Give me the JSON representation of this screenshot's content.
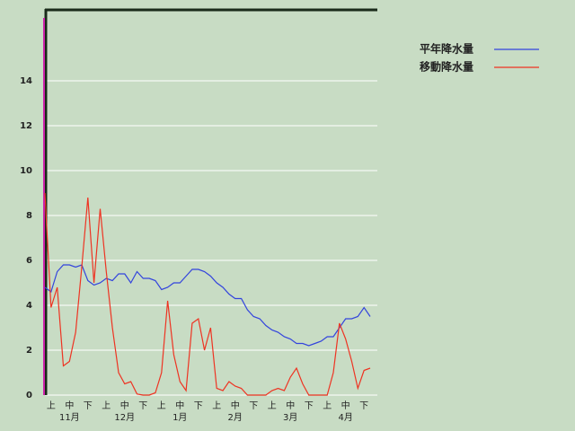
{
  "chart_data": {
    "type": "line",
    "categories": [
      null,
      "上",
      null,
      null,
      "中",
      null,
      null,
      "下",
      null,
      null,
      "上",
      null,
      null,
      "中",
      null,
      null,
      "下",
      null,
      null,
      "上",
      null,
      null,
      "中",
      null,
      null,
      "下",
      null,
      null,
      "上",
      null,
      null,
      "中",
      null,
      null,
      "下",
      null,
      null,
      "上",
      null,
      null,
      "中",
      null,
      null,
      "下",
      null,
      null,
      "上",
      null,
      null,
      "中",
      null,
      null,
      "下",
      null
    ],
    "months": [
      "11月",
      "12月",
      "1月",
      "2月",
      "3月",
      "4月"
    ],
    "series": [
      {
        "name": "平年降水量",
        "color": "#3344dd",
        "values": [
          4.8,
          4.6,
          5.5,
          5.8,
          5.8,
          5.7,
          5.8,
          5.1,
          4.9,
          5.0,
          5.2,
          5.1,
          5.4,
          5.4,
          5.0,
          5.5,
          5.2,
          5.2,
          5.1,
          4.7,
          4.8,
          5.0,
          5.0,
          5.3,
          5.6,
          5.6,
          5.5,
          5.3,
          5.0,
          4.8,
          4.5,
          4.3,
          4.3,
          3.8,
          3.5,
          3.4,
          3.1,
          2.9,
          2.8,
          2.6,
          2.5,
          2.3,
          2.3,
          2.2,
          2.3,
          2.4,
          2.6,
          2.6,
          3.0,
          3.4,
          3.4,
          3.5,
          3.9,
          3.5
        ]
      },
      {
        "name": "移動降水量",
        "color": "#ee3322",
        "values": [
          9.0,
          3.9,
          4.8,
          1.3,
          1.5,
          2.8,
          5.7,
          8.8,
          5.0,
          8.3,
          5.5,
          3.0,
          1.0,
          0.5,
          0.6,
          0.05,
          0,
          0,
          0.1,
          1.0,
          4.2,
          1.8,
          0.6,
          0.2,
          3.2,
          3.4,
          2.0,
          3.0,
          0.3,
          0.2,
          0.6,
          0.4,
          0.3,
          0,
          0,
          0,
          0,
          0.2,
          0.3,
          0.2,
          0.8,
          1.2,
          0.5,
          0,
          0,
          0,
          0,
          1.0,
          3.2,
          2.5,
          1.5,
          0.3,
          1.1,
          1.2
        ]
      }
    ],
    "ylim": [
      0,
      17.2
    ],
    "yticks": [
      0,
      2,
      4,
      6,
      8,
      10,
      12,
      14
    ],
    "grid": true
  }
}
